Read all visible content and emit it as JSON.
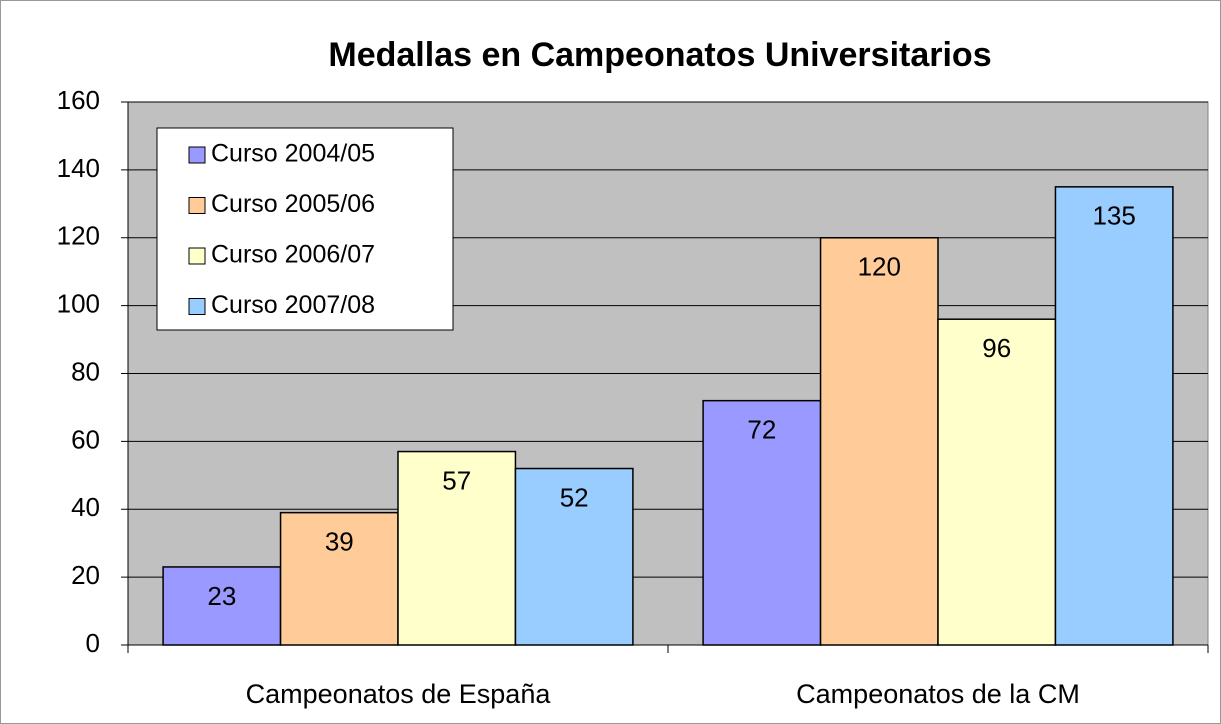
{
  "chart_data": {
    "type": "bar",
    "title": "Medallas en Campeonatos Universitarios",
    "categories": [
      "Campeonatos de España",
      "Campeonatos de la CM"
    ],
    "series": [
      {
        "name": "Curso 2004/05",
        "color": "#9999ff",
        "values": [
          23,
          72
        ]
      },
      {
        "name": "Curso 2005/06",
        "color": "#ffcc99",
        "values": [
          39,
          120
        ]
      },
      {
        "name": "Curso 2006/07",
        "color": "#ffffcc",
        "values": [
          57,
          96
        ]
      },
      {
        "name": "Curso 2007/08",
        "color": "#99ccff",
        "values": [
          52,
          135
        ]
      }
    ],
    "ylim": [
      0,
      160
    ],
    "yticks": [
      0,
      20,
      40,
      60,
      80,
      100,
      120,
      140,
      160
    ],
    "grid": true,
    "legend": "upper left"
  }
}
